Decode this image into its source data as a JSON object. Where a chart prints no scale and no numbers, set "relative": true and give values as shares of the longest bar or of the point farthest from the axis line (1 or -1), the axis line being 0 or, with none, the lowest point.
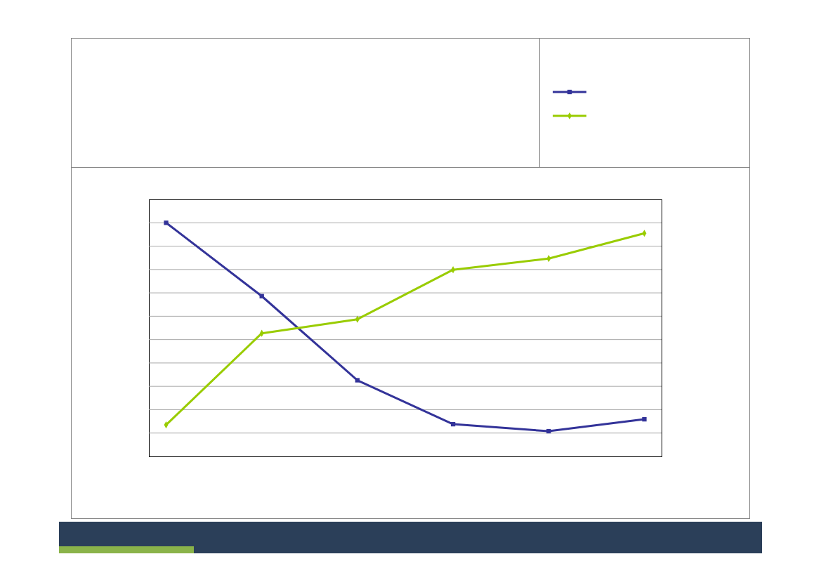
{
  "chart_data": {
    "type": "line",
    "relative": true,
    "categories": [
      null,
      null,
      null,
      null,
      null,
      null
    ],
    "grid": true,
    "series": [
      {
        "color": "#333399",
        "marker": "square",
        "values": [
          1,
          0.686,
          0.326,
          0.138,
          0.108,
          0.159
        ]
      },
      {
        "color": "#99cc00",
        "marker": "diamond",
        "values": [
          0.135,
          0.527,
          0.587,
          0.799,
          0.847,
          0.955
        ]
      }
    ]
  }
}
